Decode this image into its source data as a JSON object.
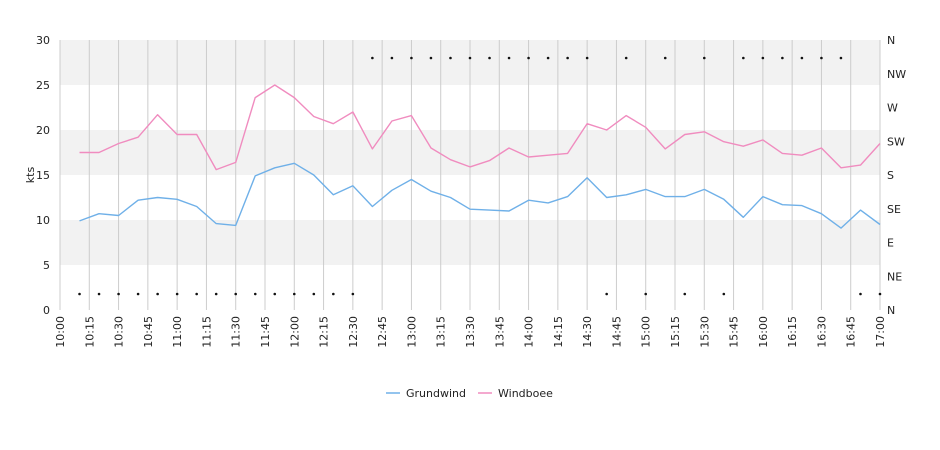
{
  "chart_data": {
    "type": "line",
    "ylabel": "kts",
    "ylim": [
      0,
      30
    ],
    "y_ticks": [
      "0",
      "5",
      "10",
      "15",
      "20",
      "25",
      "30"
    ],
    "y2_ticks": [
      "N",
      "NE",
      "E",
      "SE",
      "S",
      "SW",
      "W",
      "NW",
      "N"
    ],
    "x_ticks": [
      "10:00",
      "10:15",
      "10:30",
      "10:45",
      "11:00",
      "11:15",
      "11:30",
      "11:45",
      "12:00",
      "12:15",
      "12:30",
      "12:45",
      "13:00",
      "13:15",
      "13:30",
      "13:45",
      "14:00",
      "14:15",
      "14:30",
      "14:45",
      "15:00",
      "15:15",
      "15:30",
      "15:45",
      "16:00",
      "16:15",
      "16:30",
      "16:45",
      "17:00"
    ],
    "grid": true,
    "legend_position": "bottom",
    "series": [
      {
        "name": "Grundwind",
        "color": "#6fb0e8",
        "x": [
          "10:10",
          "10:20",
          "10:30",
          "10:40",
          "10:50",
          "11:00",
          "11:10",
          "11:20",
          "11:30",
          "11:40",
          "11:50",
          "12:00",
          "12:10",
          "12:20",
          "12:30",
          "12:40",
          "12:50",
          "13:00",
          "13:10",
          "13:20",
          "13:30",
          "13:40",
          "13:50",
          "14:00",
          "14:10",
          "14:20",
          "14:30",
          "14:40",
          "14:50",
          "15:00",
          "15:10",
          "15:20",
          "15:30",
          "15:40",
          "15:50",
          "16:00",
          "16:10",
          "16:20",
          "16:30",
          "16:40",
          "16:50",
          "17:00"
        ],
        "values": [
          9.9,
          10.7,
          10.5,
          12.2,
          12.5,
          12.3,
          11.5,
          9.6,
          9.4,
          14.9,
          15.8,
          16.3,
          15.0,
          12.8,
          13.8,
          11.5,
          13.3,
          14.5,
          13.2,
          12.5,
          11.2,
          11.1,
          11.0,
          12.2,
          11.9,
          12.6,
          14.7,
          12.5,
          12.8,
          13.4,
          12.6,
          12.6,
          13.4,
          12.3,
          10.3,
          12.6,
          11.7,
          11.6,
          10.7,
          9.1,
          11.1,
          9.5
        ]
      },
      {
        "name": "Windboee",
        "color": "#f08cbf",
        "x": [
          "10:10",
          "10:20",
          "10:30",
          "10:40",
          "10:50",
          "11:00",
          "11:10",
          "11:20",
          "11:30",
          "11:40",
          "11:50",
          "12:00",
          "12:10",
          "12:20",
          "12:30",
          "12:40",
          "12:50",
          "13:00",
          "13:10",
          "13:20",
          "13:30",
          "13:40",
          "13:50",
          "14:00",
          "14:10",
          "14:20",
          "14:30",
          "14:40",
          "14:50",
          "15:00",
          "15:10",
          "15:20",
          "15:30",
          "15:40",
          "15:50",
          "16:00",
          "16:10",
          "16:20",
          "16:30",
          "16:40",
          "16:50",
          "17:00"
        ],
        "values": [
          17.5,
          17.5,
          18.5,
          19.2,
          21.7,
          19.5,
          19.5,
          15.6,
          16.4,
          23.6,
          25.0,
          23.6,
          21.5,
          20.7,
          22.0,
          17.9,
          21.0,
          21.6,
          18.0,
          16.7,
          15.9,
          16.6,
          18.0,
          17.0,
          17.2,
          17.4,
          20.7,
          20.0,
          21.6,
          20.3,
          17.9,
          19.5,
          19.8,
          18.7,
          18.2,
          18.9,
          17.4,
          17.2,
          18.0,
          15.8,
          16.1,
          18.5
        ]
      }
    ],
    "direction_markers": [
      {
        "x": "10:10",
        "dir": "N"
      },
      {
        "x": "10:20",
        "dir": "N"
      },
      {
        "x": "10:30",
        "dir": "N"
      },
      {
        "x": "10:40",
        "dir": "N"
      },
      {
        "x": "10:50",
        "dir": "N"
      },
      {
        "x": "11:00",
        "dir": "N"
      },
      {
        "x": "11:10",
        "dir": "N"
      },
      {
        "x": "11:20",
        "dir": "N"
      },
      {
        "x": "11:30",
        "dir": "N"
      },
      {
        "x": "11:40",
        "dir": "N"
      },
      {
        "x": "11:50",
        "dir": "N"
      },
      {
        "x": "12:00",
        "dir": "N"
      },
      {
        "x": "12:10",
        "dir": "N"
      },
      {
        "x": "12:20",
        "dir": "N"
      },
      {
        "x": "12:30",
        "dir": "N"
      },
      {
        "x": "12:40",
        "dir": "NW"
      },
      {
        "x": "12:50",
        "dir": "NW"
      },
      {
        "x": "13:00",
        "dir": "NW"
      },
      {
        "x": "13:10",
        "dir": "NW"
      },
      {
        "x": "13:20",
        "dir": "NW"
      },
      {
        "x": "13:30",
        "dir": "NW"
      },
      {
        "x": "13:40",
        "dir": "NW"
      },
      {
        "x": "13:50",
        "dir": "NW"
      },
      {
        "x": "14:00",
        "dir": "NW"
      },
      {
        "x": "14:10",
        "dir": "NW"
      },
      {
        "x": "14:20",
        "dir": "NW"
      },
      {
        "x": "14:30",
        "dir": "NW"
      },
      {
        "x": "14:40",
        "dir": "N"
      },
      {
        "x": "14:50",
        "dir": "NW"
      },
      {
        "x": "15:00",
        "dir": "N"
      },
      {
        "x": "15:10",
        "dir": "NW"
      },
      {
        "x": "15:20",
        "dir": "N"
      },
      {
        "x": "15:30",
        "dir": "NW"
      },
      {
        "x": "15:40",
        "dir": "N"
      },
      {
        "x": "15:50",
        "dir": "NW"
      },
      {
        "x": "16:00",
        "dir": "NW"
      },
      {
        "x": "16:10",
        "dir": "NW"
      },
      {
        "x": "16:20",
        "dir": "NW"
      },
      {
        "x": "16:30",
        "dir": "NW"
      },
      {
        "x": "16:40",
        "dir": "NW"
      },
      {
        "x": "16:50",
        "dir": "N"
      },
      {
        "x": "17:00",
        "dir": "N"
      }
    ]
  }
}
